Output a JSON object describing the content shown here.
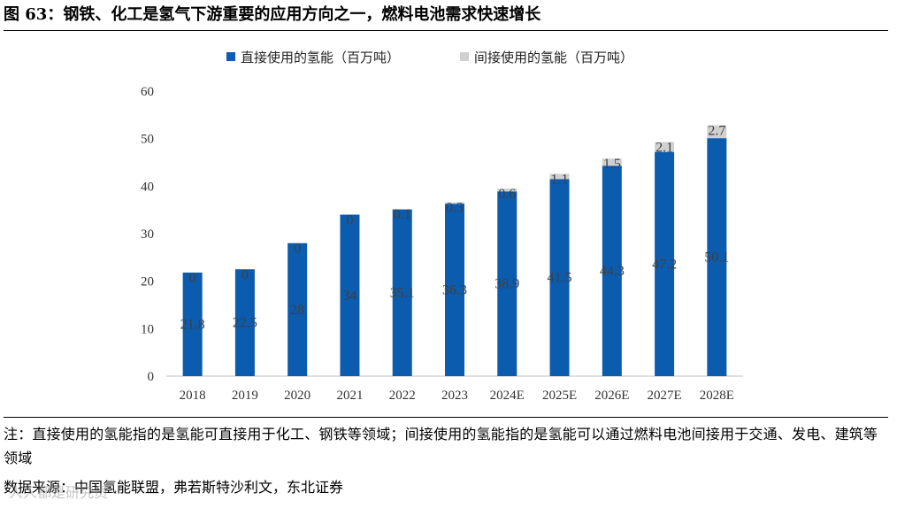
{
  "figure_title": "图 63：钢铁、化工是氢气下游重要的应用方向之一，燃料电池需求快速增长",
  "note": "注：直接使用的氢能指的是氢能可直接用于化工、钢铁等领域；间接使用的氢能指的是氢能可以通过燃料电池间接用于交通、发电、建筑等领域",
  "source": "数据来源：中国氢能联盟，弗若斯特沙利文，东北证券",
  "watermark": "人人都是研究员",
  "colors": {
    "direct": "#0B5BAE",
    "indirect": "#D0D0D0",
    "axis": "#BFBFBF",
    "tick_text": "#333333",
    "label_text": "#404040"
  },
  "chart_data": {
    "type": "bar",
    "stacked": true,
    "categories": [
      "2018",
      "2019",
      "2020",
      "2021",
      "2022",
      "2023",
      "2024E",
      "2025E",
      "2026E",
      "2027E",
      "2028E"
    ],
    "series": [
      {
        "name": "直接使用的氢能（百万吨）",
        "values": [
          21.8,
          22.5,
          28,
          34,
          35.1,
          36.3,
          38.9,
          41.5,
          44.3,
          47.2,
          50.1
        ],
        "labels": [
          "21.8",
          "22.5",
          "28",
          "34",
          "35.1",
          "36.3",
          "38.9",
          "41.5",
          "44.3",
          "47.2",
          "50.1"
        ]
      },
      {
        "name": "间接使用的氢能（百万吨）",
        "values": [
          0,
          0,
          0,
          0,
          0.1,
          0.3,
          0.6,
          1.1,
          1.5,
          2.1,
          2.7
        ],
        "labels": [
          "0",
          "0",
          "0",
          "0",
          "0.1",
          "0.3",
          "0.6",
          "1.1",
          "1.5",
          "2.1",
          "2.7"
        ]
      }
    ],
    "ylim": [
      0,
      60
    ],
    "yticks": [
      "0",
      "10",
      "20",
      "30",
      "40",
      "50",
      "60"
    ],
    "ytick_values": [
      0,
      10,
      20,
      30,
      40,
      50,
      60
    ],
    "legend_position": "top",
    "grid": false,
    "xlabel": "",
    "ylabel": ""
  }
}
